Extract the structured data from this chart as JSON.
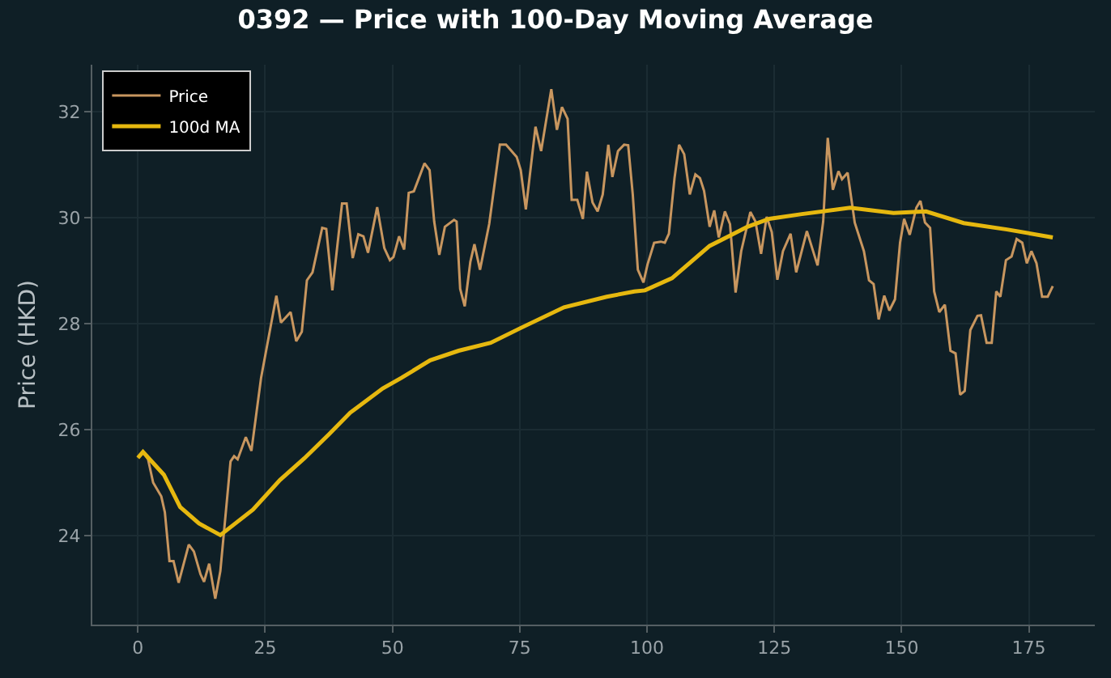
{
  "chart_data": {
    "type": "line",
    "title": "0392 — Price with 100-Day Moving Average",
    "ylabel": "Price (HKD)",
    "xlim": [
      -8.95,
      187.95
    ],
    "xticks": [
      0,
      25,
      50,
      75,
      100,
      125,
      150,
      175
    ],
    "ylim": [
      22.32,
      32.89
    ],
    "yticks": [
      24,
      26,
      28,
      30,
      32
    ],
    "grid": true,
    "legend": "top left",
    "marker": "none",
    "line_style": "solid",
    "series": [
      {
        "name": "Price",
        "color": "#c8965f",
        "x": [
          0,
          1,
          2,
          3,
          4.6,
          5.3,
          6.2,
          7,
          8,
          10,
          11,
          12.3,
          13,
          14,
          15.2,
          16.2,
          18.2,
          18.9,
          19.6,
          21.2,
          22.3,
          24.2,
          27.2,
          28.1,
          30,
          31.1,
          32.2,
          33.2,
          34.3,
          36.2,
          37,
          38.2,
          40.1,
          41,
          42.2,
          43.3,
          44.3,
          45.2,
          47,
          48.4,
          49.5,
          50.2,
          51.3,
          52.3,
          53.2,
          54.2,
          55,
          56.3,
          57.3,
          58.2,
          59.2,
          60.3,
          62.1,
          62.6,
          63.3,
          64.2,
          65.3,
          66.1,
          67.2,
          69,
          71.1,
          72.3,
          74.4,
          75.2,
          76.2,
          78.1,
          79.2,
          81.2,
          82.3,
          83.3,
          84.4,
          85.2,
          86.3,
          87.4,
          88.2,
          89.3,
          90.3,
          91.3,
          92.4,
          93.2,
          94.3,
          95.5,
          96.3,
          97.2,
          98.2,
          99.3,
          100.1,
          101.4,
          102.7,
          103.5,
          104.3,
          105.4,
          106.3,
          107.3,
          108.4,
          109.5,
          110.4,
          111.2,
          112.3,
          113.2,
          114.1,
          115.3,
          116.3,
          117.4,
          118.5,
          120.3,
          121.3,
          122.4,
          123.5,
          124.5,
          125.6,
          126.7,
          128.2,
          129.3,
          131.4,
          133.5,
          134.6,
          135.5,
          136.5,
          137.6,
          138.3,
          139.4,
          140.8,
          142.6,
          143.6,
          144.5,
          145.5,
          146.6,
          147.6,
          148.7,
          149.7,
          150.5,
          151.6,
          152.9,
          153.7,
          154.6,
          155.6,
          156.4,
          157.4,
          158.5,
          159.6,
          160.6,
          161.5,
          162.4,
          163.5,
          164.9,
          165.6,
          166.7,
          167.7,
          168.6,
          169.4,
          170.5,
          171.6,
          172.6,
          173.7,
          174.6,
          175.5,
          176.5,
          177.6,
          178.7,
          179.7
        ],
        "values": [
          25.47,
          25.58,
          25.44,
          25.0,
          24.74,
          24.44,
          23.52,
          23.52,
          23.11,
          23.83,
          23.7,
          23.27,
          23.13,
          23.47,
          22.81,
          23.33,
          25.4,
          25.5,
          25.44,
          25.86,
          25.6,
          26.98,
          28.53,
          28.02,
          28.22,
          27.67,
          27.85,
          28.82,
          28.97,
          29.81,
          29.79,
          28.63,
          30.27,
          30.27,
          29.24,
          29.69,
          29.65,
          29.34,
          30.2,
          29.43,
          29.2,
          29.26,
          29.65,
          29.4,
          30.47,
          30.5,
          30.7,
          31.03,
          30.9,
          29.93,
          29.3,
          29.83,
          29.96,
          29.93,
          28.66,
          28.33,
          29.17,
          29.5,
          29.02,
          29.88,
          31.38,
          31.38,
          31.15,
          30.9,
          30.16,
          31.72,
          31.26,
          32.43,
          31.66,
          32.09,
          31.87,
          30.34,
          30.34,
          29.98,
          30.87,
          30.29,
          30.12,
          30.44,
          31.38,
          30.77,
          31.26,
          31.38,
          31.37,
          30.44,
          29.02,
          28.78,
          29.12,
          29.53,
          29.55,
          29.53,
          29.7,
          30.75,
          31.38,
          31.2,
          30.44,
          30.82,
          30.75,
          30.51,
          29.83,
          30.14,
          29.63,
          30.12,
          29.88,
          28.59,
          29.37,
          30.11,
          29.93,
          29.32,
          30.02,
          29.73,
          28.83,
          29.37,
          29.7,
          28.97,
          29.75,
          29.1,
          29.93,
          31.51,
          30.53,
          30.88,
          30.73,
          30.85,
          29.91,
          29.37,
          28.82,
          28.75,
          28.08,
          28.53,
          28.25,
          28.46,
          29.53,
          29.98,
          29.68,
          30.19,
          30.32,
          29.91,
          29.81,
          28.61,
          28.22,
          28.36,
          27.49,
          27.44,
          26.66,
          26.73,
          27.88,
          28.15,
          28.16,
          27.64,
          27.64,
          28.61,
          28.51,
          29.2,
          29.27,
          29.6,
          29.53,
          29.14,
          29.37,
          29.14,
          28.51,
          28.51,
          28.71
        ]
      },
      {
        "name": "100d MA",
        "color": "#e6b80f",
        "x": [
          0,
          1,
          5.1,
          8.3,
          12,
          16.2,
          22.6,
          27.9,
          32.7,
          37.5,
          41.7,
          48.1,
          51.8,
          57.4,
          63,
          69.3,
          75.2,
          83.7,
          92.1,
          97.5,
          99.6,
          104.9,
          112.3,
          116.6,
          119.7,
          124,
          130.4,
          139.9,
          148.4,
          154.8,
          162.2,
          170.7,
          179.7
        ],
        "values": [
          25.47,
          25.58,
          25.15,
          24.54,
          24.23,
          24.01,
          24.49,
          25.05,
          25.46,
          25.91,
          26.32,
          26.78,
          26.98,
          27.31,
          27.49,
          27.64,
          27.92,
          28.31,
          28.51,
          28.61,
          28.63,
          28.86,
          29.47,
          29.68,
          29.83,
          29.98,
          30.07,
          30.19,
          30.09,
          30.12,
          29.9,
          29.78,
          29.63
        ]
      }
    ]
  }
}
